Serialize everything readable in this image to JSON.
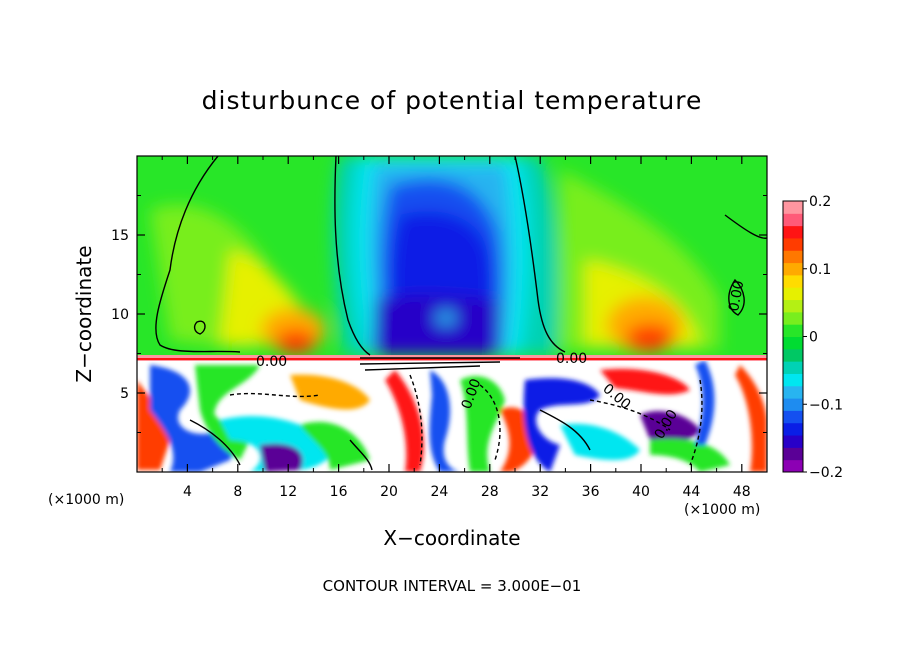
{
  "chart_data": {
    "type": "heatmap",
    "title": "disturbunce of potential temperature",
    "xlabel": "X−coordinate",
    "ylabel": "Z−coordinate",
    "x_unit_left": "(×1000 m)",
    "x_unit_right": "(×1000 m)",
    "footer": "CONTOUR INTERVAL = 3.000E−01",
    "xlim": [
      0,
      50
    ],
    "ylim": [
      0,
      20
    ],
    "x_ticks": [
      "4",
      "8",
      "12",
      "16",
      "20",
      "24",
      "28",
      "32",
      "36",
      "40",
      "44",
      "48"
    ],
    "x_tick_values": [
      4,
      8,
      12,
      16,
      20,
      24,
      28,
      32,
      36,
      40,
      44,
      48
    ],
    "y_ticks": [
      "5",
      "10",
      "15"
    ],
    "y_tick_values": [
      5,
      10,
      15
    ],
    "colorbar": {
      "range": [
        -0.2,
        0.2
      ],
      "tick_labels": [
        "0.2",
        "0.1",
        "0",
        "−0.1",
        "−0.2"
      ],
      "tick_values": [
        0.2,
        0.1,
        0,
        -0.1,
        -0.2
      ],
      "colors": [
        "#8c00b4",
        "#5a0096",
        "#2800c8",
        "#0a1ee6",
        "#1450f0",
        "#1e8cf0",
        "#28b4f0",
        "#00e6f0",
        "#00d2b4",
        "#00c864",
        "#00dc32",
        "#28e628",
        "#78ee1e",
        "#b4f014",
        "#e6f000",
        "#ffdc00",
        "#ffaa00",
        "#ff7800",
        "#ff3c00",
        "#ff1414",
        "#ff5a78",
        "#ff96a0"
      ]
    },
    "contour_labels": [
      "0.00",
      "0.00",
      "0.00",
      "0.00",
      "0.00",
      "0.00"
    ]
  }
}
